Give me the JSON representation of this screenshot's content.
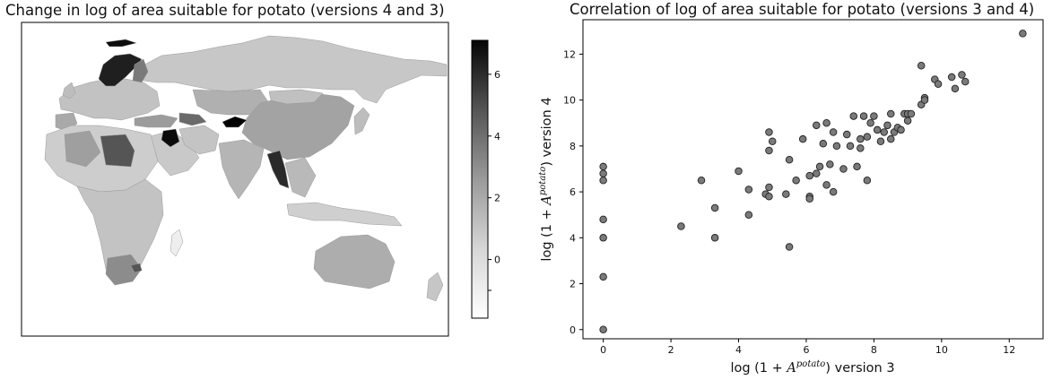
{
  "map_panel": {
    "title": "Change in log of area suitable for potato (versions 4 and 3)",
    "colorbar": {
      "ticks": [
        -1,
        0,
        2,
        4,
        6
      ],
      "tick_labels": [
        "",
        "0",
        "2",
        "4",
        "6"
      ],
      "range": [
        -1.9,
        7.1
      ],
      "colormap": "greys",
      "low_color": "#ffffff",
      "high_color": "#000000"
    }
  },
  "chart_data": {
    "type": "scatter",
    "title": "Correlation of log of area suitable for potato (versions 3 and 4)",
    "xlabel": "log (1 + A^potato) version 3",
    "ylabel": "log (1 + A^potato) version 4",
    "xlabel_main": "log (1 + ",
    "xlabel_sup": "potato",
    "xlabel_tail": ") version 3",
    "ylabel_main": "log (1 + ",
    "ylabel_sup": "potato",
    "ylabel_tail": ") version 4",
    "xlim": [
      -0.6,
      13.0
    ],
    "ylim": [
      -0.4,
      13.5
    ],
    "xticks": [
      0,
      2,
      4,
      6,
      8,
      10,
      12
    ],
    "yticks": [
      0,
      2,
      4,
      6,
      8,
      10,
      12
    ],
    "marker_color": "#7a7a7a",
    "marker_edge": "#222222",
    "grid": false,
    "points": [
      [
        0,
        7.1
      ],
      [
        0,
        6.8
      ],
      [
        0,
        6.5
      ],
      [
        0,
        4.8
      ],
      [
        0,
        4.0
      ],
      [
        0,
        2.3
      ],
      [
        0,
        0.0
      ],
      [
        2.3,
        4.5
      ],
      [
        2.9,
        6.5
      ],
      [
        3.3,
        5.3
      ],
      [
        3.3,
        4.0
      ],
      [
        4.0,
        6.9
      ],
      [
        4.3,
        6.1
      ],
      [
        4.3,
        5.0
      ],
      [
        4.8,
        5.9
      ],
      [
        4.9,
        6.2
      ],
      [
        4.9,
        5.8
      ],
      [
        4.9,
        8.6
      ],
      [
        5.0,
        8.2
      ],
      [
        4.9,
        7.8
      ],
      [
        5.4,
        5.9
      ],
      [
        5.5,
        3.6
      ],
      [
        5.5,
        7.4
      ],
      [
        5.7,
        6.5
      ],
      [
        5.9,
        8.3
      ],
      [
        6.1,
        6.7
      ],
      [
        6.1,
        5.8
      ],
      [
        6.1,
        5.7
      ],
      [
        6.3,
        6.8
      ],
      [
        6.3,
        8.9
      ],
      [
        6.4,
        7.1
      ],
      [
        6.5,
        8.1
      ],
      [
        6.6,
        9.0
      ],
      [
        6.6,
        6.3
      ],
      [
        6.7,
        7.2
      ],
      [
        6.8,
        8.6
      ],
      [
        6.8,
        6.0
      ],
      [
        6.9,
        8.0
      ],
      [
        7.1,
        7.0
      ],
      [
        7.2,
        8.5
      ],
      [
        7.3,
        8.0
      ],
      [
        7.4,
        9.3
      ],
      [
        7.5,
        7.1
      ],
      [
        7.6,
        8.3
      ],
      [
        7.6,
        7.9
      ],
      [
        7.7,
        9.3
      ],
      [
        7.8,
        8.4
      ],
      [
        7.8,
        6.5
      ],
      [
        7.9,
        9.0
      ],
      [
        8.0,
        9.3
      ],
      [
        8.1,
        8.7
      ],
      [
        8.2,
        8.2
      ],
      [
        8.3,
        8.6
      ],
      [
        8.4,
        8.9
      ],
      [
        8.5,
        9.4
      ],
      [
        8.5,
        8.3
      ],
      [
        8.6,
        8.6
      ],
      [
        8.7,
        8.8
      ],
      [
        8.8,
        8.7
      ],
      [
        8.9,
        9.4
      ],
      [
        9.0,
        9.1
      ],
      [
        9.0,
        9.4
      ],
      [
        9.1,
        9.4
      ],
      [
        9.4,
        9.8
      ],
      [
        9.4,
        11.5
      ],
      [
        9.5,
        10.1
      ],
      [
        9.5,
        10.0
      ],
      [
        9.8,
        10.9
      ],
      [
        9.9,
        10.7
      ],
      [
        10.3,
        11.0
      ],
      [
        10.4,
        10.5
      ],
      [
        10.6,
        11.1
      ],
      [
        10.7,
        10.8
      ],
      [
        12.4,
        12.9
      ]
    ]
  }
}
